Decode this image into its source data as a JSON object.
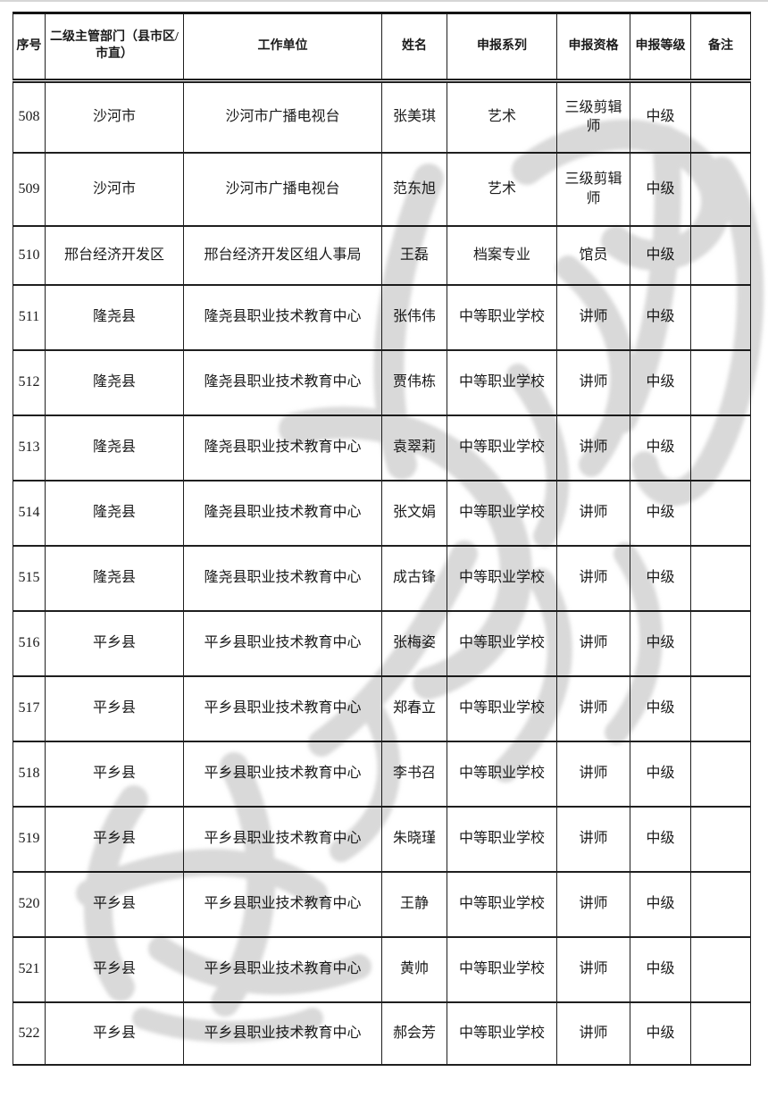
{
  "page": {
    "background_color": "#ffffff",
    "border_color": "#1f1f1f",
    "text_color": "#1a1a1a"
  },
  "watermark": {
    "color": "#b9b9b9"
  },
  "table": {
    "headers": {
      "no": "序号",
      "department": "二级主管部门（县市区/市直）",
      "unit": "工作单位",
      "name": "姓名",
      "series": "申报系列",
      "qualification": "申报资格",
      "level": "申报等级",
      "remark": "备注"
    },
    "rows": [
      {
        "no": "508",
        "department": "沙河市",
        "unit": "沙河市广播电视台",
        "name": "张美琪",
        "series": "艺术",
        "qualification": "三级剪辑师",
        "level": "中级",
        "remark": ""
      },
      {
        "no": "509",
        "department": "沙河市",
        "unit": "沙河市广播电视台",
        "name": "范东旭",
        "series": "艺术",
        "qualification": "三级剪辑师",
        "level": "中级",
        "remark": ""
      },
      {
        "no": "510",
        "department": "邢台经济开发区",
        "unit": "邢台经济开发区组人事局",
        "name": "王磊",
        "series": "档案专业",
        "qualification": "馆员",
        "level": "中级",
        "remark": ""
      },
      {
        "no": "511",
        "department": "隆尧县",
        "unit": "隆尧县职业技术教育中心",
        "name": "张伟伟",
        "series": "中等职业学校",
        "qualification": "讲师",
        "level": "中级",
        "remark": ""
      },
      {
        "no": "512",
        "department": "隆尧县",
        "unit": "隆尧县职业技术教育中心",
        "name": "贾伟栋",
        "series": "中等职业学校",
        "qualification": "讲师",
        "level": "中级",
        "remark": ""
      },
      {
        "no": "513",
        "department": "隆尧县",
        "unit": "隆尧县职业技术教育中心",
        "name": "袁翠莉",
        "series": "中等职业学校",
        "qualification": "讲师",
        "level": "中级",
        "remark": ""
      },
      {
        "no": "514",
        "department": "隆尧县",
        "unit": "隆尧县职业技术教育中心",
        "name": "张文娟",
        "series": "中等职业学校",
        "qualification": "讲师",
        "level": "中级",
        "remark": ""
      },
      {
        "no": "515",
        "department": "隆尧县",
        "unit": "隆尧县职业技术教育中心",
        "name": "成古锋",
        "series": "中等职业学校",
        "qualification": "讲师",
        "level": "中级",
        "remark": ""
      },
      {
        "no": "516",
        "department": "平乡县",
        "unit": "平乡县职业技术教育中心",
        "name": "张梅姿",
        "series": "中等职业学校",
        "qualification": "讲师",
        "level": "中级",
        "remark": ""
      },
      {
        "no": "517",
        "department": "平乡县",
        "unit": "平乡县职业技术教育中心",
        "name": "郑春立",
        "series": "中等职业学校",
        "qualification": "讲师",
        "level": "中级",
        "remark": ""
      },
      {
        "no": "518",
        "department": "平乡县",
        "unit": "平乡县职业技术教育中心",
        "name": "李书召",
        "series": "中等职业学校",
        "qualification": "讲师",
        "level": "中级",
        "remark": ""
      },
      {
        "no": "519",
        "department": "平乡县",
        "unit": "平乡县职业技术教育中心",
        "name": "朱晓瑾",
        "series": "中等职业学校",
        "qualification": "讲师",
        "level": "中级",
        "remark": ""
      },
      {
        "no": "520",
        "department": "平乡县",
        "unit": "平乡县职业技术教育中心",
        "name": "王静",
        "series": "中等职业学校",
        "qualification": "讲师",
        "level": "中级",
        "remark": ""
      },
      {
        "no": "521",
        "department": "平乡县",
        "unit": "平乡县职业技术教育中心",
        "name": "黄帅",
        "series": "中等职业学校",
        "qualification": "讲师",
        "level": "中级",
        "remark": ""
      },
      {
        "no": "522",
        "department": "平乡县",
        "unit": "平乡县职业技术教育中心",
        "name": "郝会芳",
        "series": "中等职业学校",
        "qualification": "讲师",
        "level": "中级",
        "remark": ""
      }
    ]
  }
}
